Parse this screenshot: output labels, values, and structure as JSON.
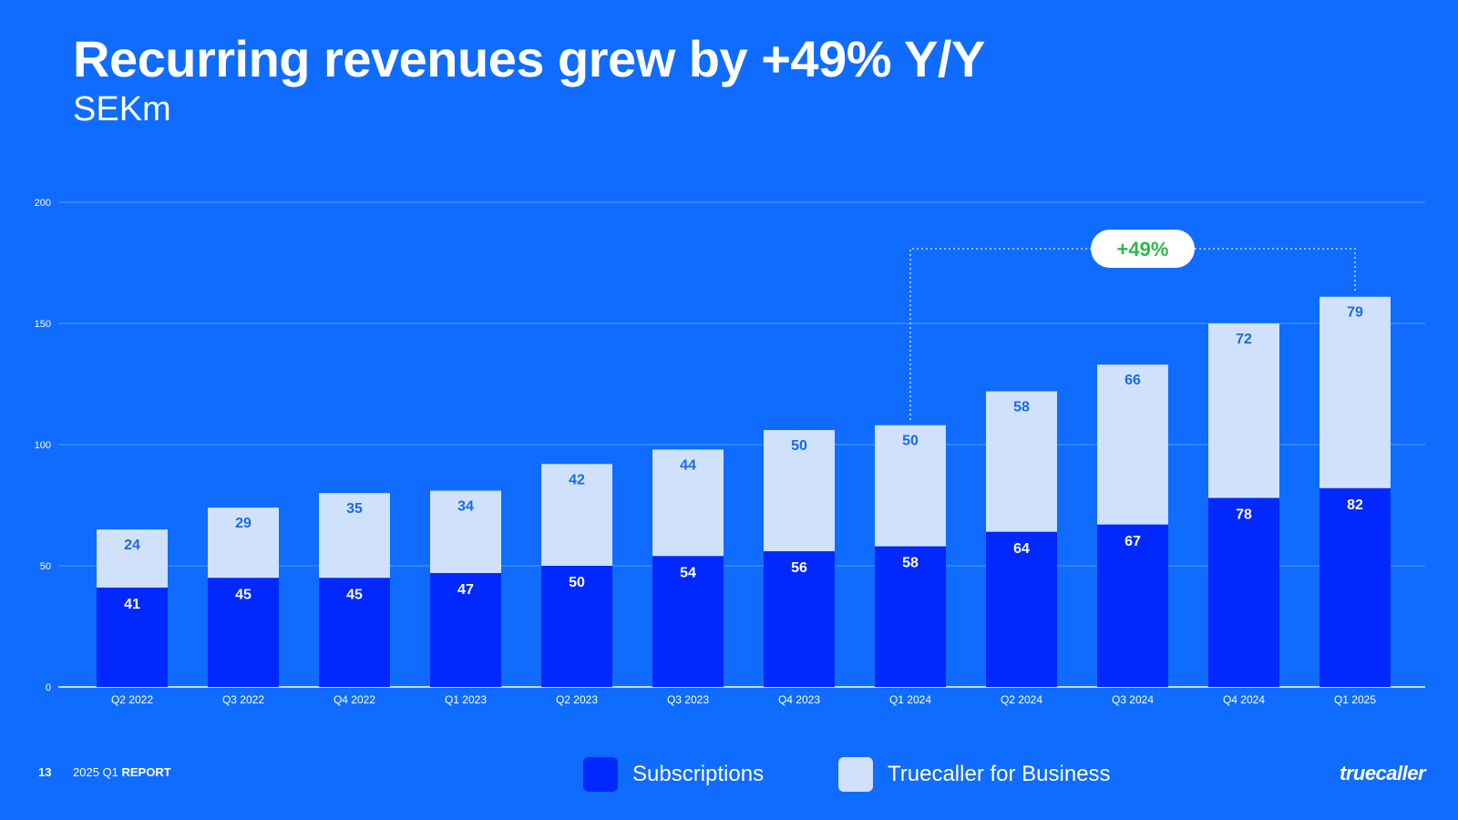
{
  "header": {
    "title": "Recurring revenues grew by +49% Y/Y",
    "subtitle": "SEKm"
  },
  "footer": {
    "page_number": "13",
    "report_prefix": "2025 Q1 ",
    "report_bold": "REPORT",
    "logo": "truecaller"
  },
  "colors": {
    "background": "#0f6cff",
    "subscriptions": "#0128ff",
    "business": "#d0e2fb",
    "business_label": "#1a6ae6",
    "gridline": "#5a98ff",
    "growth_text": "#2fb84a"
  },
  "chart_data": {
    "type": "bar",
    "stacked": true,
    "title": "Recurring revenues grew by +49% Y/Y",
    "ylabel": "SEKm",
    "ylim": [
      0,
      200
    ],
    "yticks": [
      0,
      50,
      100,
      150,
      200
    ],
    "grid": true,
    "categories": [
      "Q2 2022",
      "Q3 2022",
      "Q4 2022",
      "Q1 2023",
      "Q2 2023",
      "Q3 2023",
      "Q4 2023",
      "Q1 2024",
      "Q2 2024",
      "Q3 2024",
      "Q4 2024",
      "Q1 2025"
    ],
    "series": [
      {
        "name": "Subscriptions",
        "values": [
          41,
          45,
          45,
          47,
          50,
          54,
          56,
          58,
          64,
          67,
          78,
          82
        ]
      },
      {
        "name": "Truecaller for Business",
        "values": [
          24,
          29,
          35,
          34,
          42,
          44,
          50,
          50,
          58,
          66,
          72,
          79
        ]
      }
    ],
    "annotation": {
      "text": "+49%",
      "from_category": "Q1 2024",
      "to_category": "Q1 2025"
    },
    "legend_position": "bottom-center"
  }
}
